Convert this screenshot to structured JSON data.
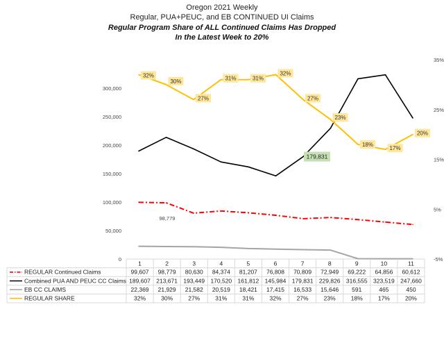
{
  "chart_data": {
    "type": "line",
    "title": "Oregon 2021 Weekly",
    "subtitle": "Regular, PUA+PEUC, and EB CONTINUED UI Claims",
    "headline_line1": "Regular Program Share of ALL Continued Claims Has Dropped",
    "headline_line2": "In the Latest Week to 20%",
    "categories": [
      "1",
      "2",
      "3",
      "4",
      "5",
      "6",
      "7",
      "8",
      "9",
      "10",
      "11"
    ],
    "y_left": {
      "min": 0,
      "max": 350000,
      "ticks": [
        "0",
        "50,000",
        "100,000",
        "150,000",
        "200,000",
        "250,000",
        "300,000"
      ]
    },
    "y_right": {
      "min": -0.05,
      "max": 0.35,
      "ticks": [
        "-5%",
        "5%",
        "15%",
        "25%",
        "35%"
      ]
    },
    "series": [
      {
        "name": "REGULAR Continued Claims",
        "axis": "left",
        "color": "#ff0000",
        "style": "dashdot",
        "values": [
          99607,
          98779,
          80630,
          84374,
          81207,
          76808,
          70809,
          72949,
          69222,
          64856,
          60612
        ],
        "display": [
          "99,607",
          "98,779",
          "80,630",
          "84,374",
          "81,207",
          "76,808",
          "70,809",
          "72,949",
          "69,222",
          "64,856",
          "60,612"
        ]
      },
      {
        "name": "Combined PUA AND PEUC CC Claims",
        "axis": "left",
        "color": "#000000",
        "style": "solid",
        "values": [
          189607,
          213671,
          193449,
          170520,
          161812,
          145984,
          179831,
          229826,
          316555,
          323519,
          247660
        ],
        "display": [
          "189,607",
          "213,671",
          "193,449",
          "170,520",
          "161,812",
          "145,984",
          "179,831",
          "229,826",
          "316,555",
          "323,519",
          "247,660"
        ]
      },
      {
        "name": "EB CC CLAIMS",
        "axis": "left",
        "color": "#a5a5a5",
        "style": "solid",
        "values": [
          22369,
          21929,
          21582,
          20519,
          18421,
          17415,
          16533,
          15646,
          591,
          465,
          450
        ],
        "display": [
          "22,369",
          "21,929",
          "21,582",
          "20,519",
          "18,421",
          "17,415",
          "16,533",
          "15,646",
          "591",
          "465",
          "450"
        ]
      },
      {
        "name": "REGULAR SHARE",
        "axis": "right",
        "color": "#ffc000",
        "style": "solid",
        "values": [
          0.32,
          0.3,
          0.27,
          0.31,
          0.31,
          0.32,
          0.27,
          0.23,
          0.18,
          0.17,
          0.2
        ],
        "display": [
          "32%",
          "30%",
          "27%",
          "31%",
          "31%",
          "32%",
          "27%",
          "23%",
          "18%",
          "17%",
          "20%"
        ]
      }
    ],
    "callouts": {
      "regular_week2": "98,779",
      "combined_week7": "179,831"
    }
  }
}
